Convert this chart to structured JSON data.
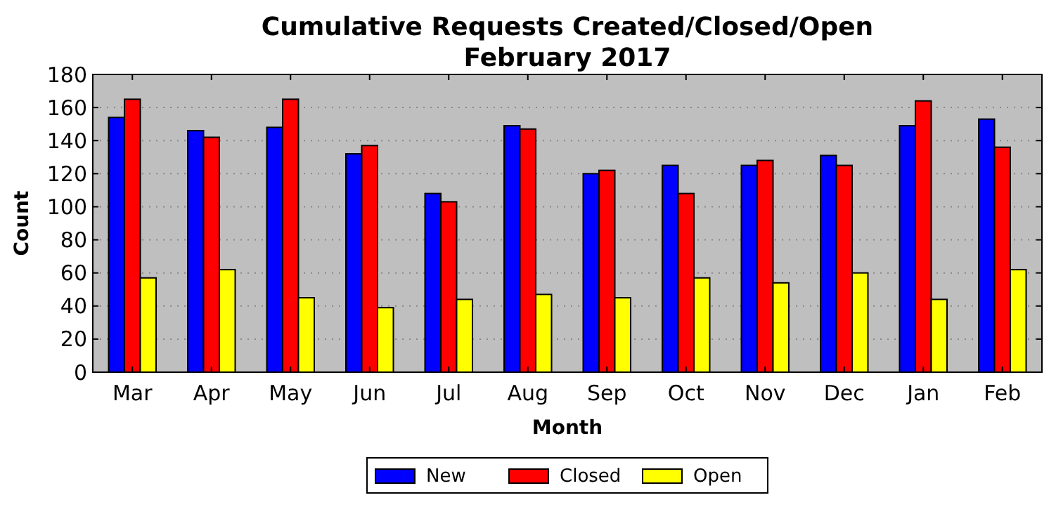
{
  "chart_data": {
    "type": "bar",
    "title": "Cumulative Requests Created/Closed/Open\nFebruary 2017",
    "xlabel": "Month",
    "ylabel": "Count",
    "categories": [
      "Mar",
      "Apr",
      "May",
      "Jun",
      "Jul",
      "Aug",
      "Sep",
      "Oct",
      "Nov",
      "Dec",
      "Jan",
      "Feb"
    ],
    "series": [
      {
        "name": "New",
        "color": "#0000ff",
        "values": [
          154,
          146,
          148,
          132,
          108,
          149,
          120,
          125,
          125,
          131,
          149,
          153
        ]
      },
      {
        "name": "Closed",
        "color": "#ff0000",
        "values": [
          165,
          142,
          165,
          137,
          103,
          147,
          122,
          108,
          128,
          125,
          164,
          136
        ]
      },
      {
        "name": "Open",
        "color": "#ffff00",
        "values": [
          57,
          62,
          45,
          39,
          44,
          47,
          45,
          57,
          54,
          60,
          44,
          62
        ]
      }
    ],
    "ylim": [
      0,
      180
    ],
    "yticks": [
      0,
      20,
      40,
      60,
      80,
      100,
      120,
      140,
      160,
      180
    ],
    "grid": "y",
    "legend": "bottom"
  }
}
